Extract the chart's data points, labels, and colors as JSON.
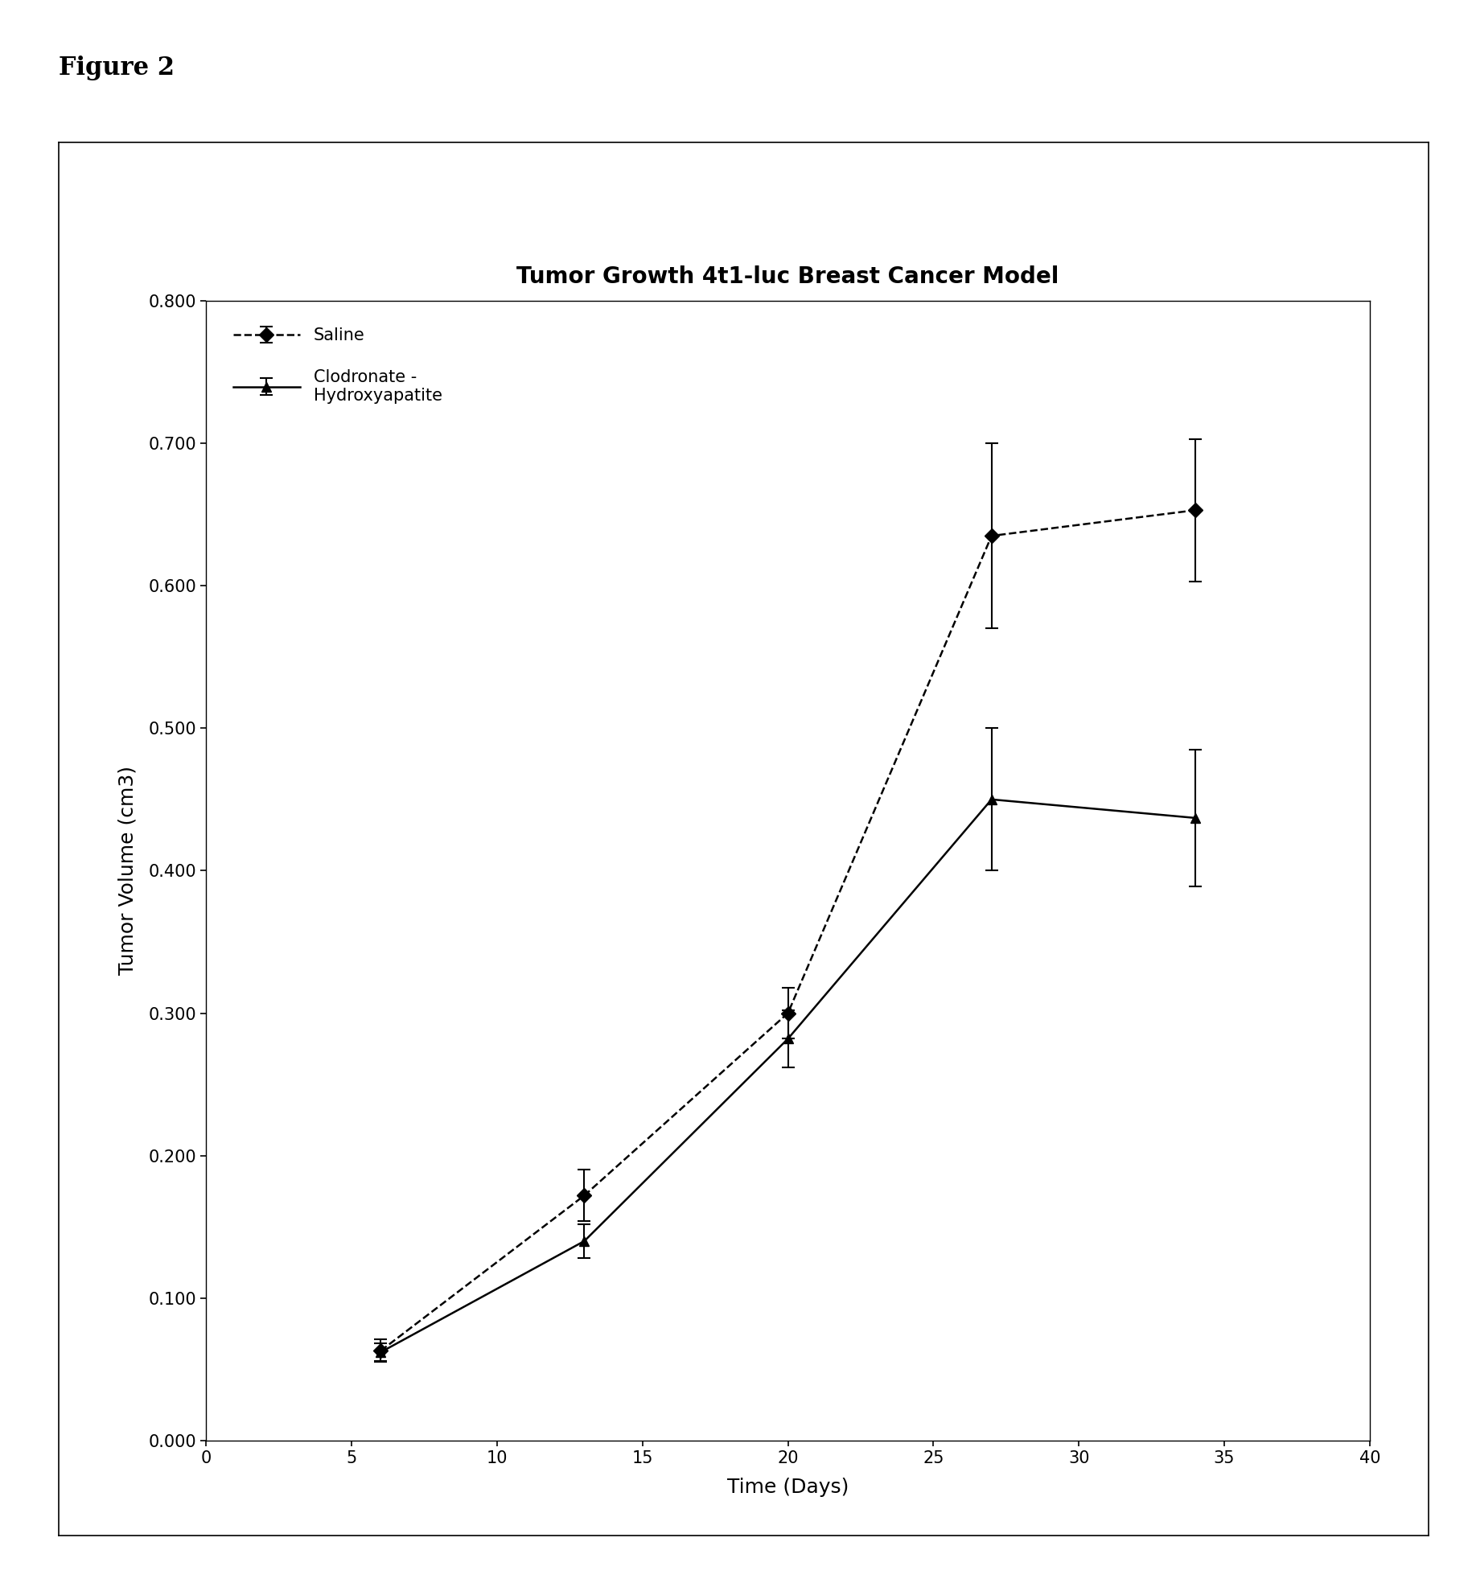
{
  "title": "Tumor Growth 4t1-luc Breast Cancer Model",
  "xlabel": "Time (Days)",
  "ylabel": "Tumor Volume (cm3)",
  "figure_label": "Figure 2",
  "saline": {
    "x": [
      6,
      13,
      20,
      27,
      34
    ],
    "y": [
      0.063,
      0.172,
      0.3,
      0.635,
      0.653
    ],
    "yerr": [
      0.008,
      0.018,
      0.018,
      0.065,
      0.05
    ],
    "label": "Saline",
    "color": "black",
    "linestyle": "dashed",
    "marker": "D",
    "markersize": 9
  },
  "clodronate": {
    "x": [
      6,
      13,
      20,
      27,
      34
    ],
    "y": [
      0.062,
      0.14,
      0.282,
      0.45,
      0.437
    ],
    "yerr": [
      0.006,
      0.012,
      0.02,
      0.05,
      0.048
    ],
    "label": "Clodronate -\nHydroxyapatite",
    "color": "black",
    "linestyle": "solid",
    "marker": "^",
    "markersize": 9
  },
  "xlim": [
    0,
    40
  ],
  "ylim": [
    0.0,
    0.8
  ],
  "xticks": [
    0,
    5,
    10,
    15,
    20,
    25,
    30,
    35,
    40
  ],
  "yticks": [
    0.0,
    0.1,
    0.2,
    0.3,
    0.4,
    0.5,
    0.6,
    0.7,
    0.8
  ],
  "background_color": "#ffffff",
  "figure_width": 18.31,
  "figure_height": 19.68,
  "dpi": 100
}
